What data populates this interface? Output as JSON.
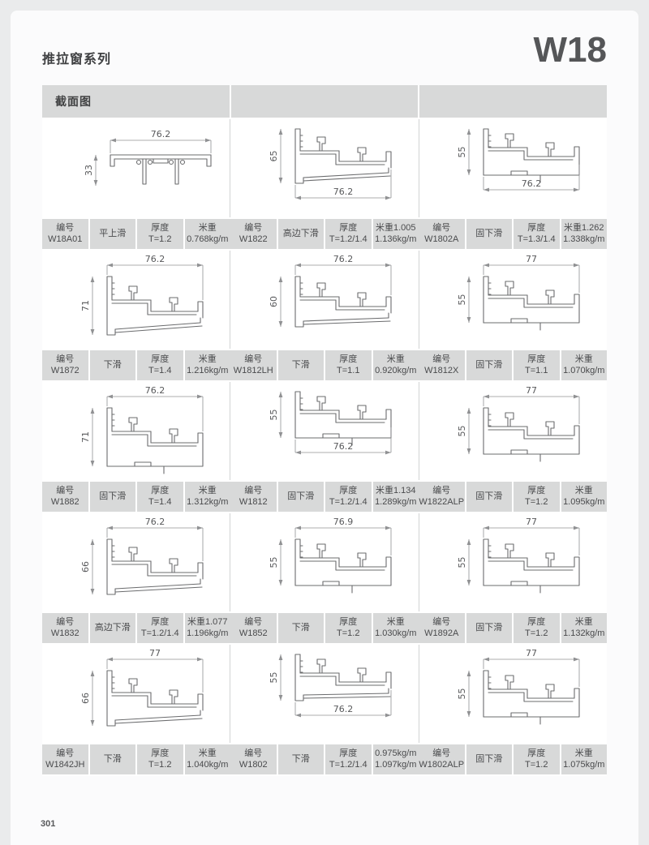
{
  "page": {
    "series_title": "推拉窗系列",
    "series_code": "W18",
    "page_number": "301"
  },
  "table": {
    "header": "截面图",
    "labels": {
      "code": "编号",
      "thickness": "厚度",
      "weight": "米重"
    },
    "rows": [
      [
        {
          "code": "W18A01",
          "type": "平上滑",
          "thickness": "T=1.2",
          "weight_line1": "米重",
          "weight_line2": "0.768kg/m",
          "drawing": {
            "width_dim": "76.2",
            "height_dim": "33",
            "width_dim_pos": "top",
            "profile_style": "toprail",
            "height_mm": 33
          }
        },
        {
          "code": "W1822",
          "type": "高边下滑",
          "thickness": "T=1.2/1.4",
          "weight_line1": "米重1.005",
          "weight_line2": "1.136kg/m",
          "drawing": {
            "width_dim": "76.2",
            "height_dim": "65",
            "width_dim_pos": "bottom",
            "profile_style": "slope",
            "height_mm": 65
          }
        },
        {
          "code": "W1802A",
          "type": "固下滑",
          "thickness": "T=1.3/1.4",
          "weight_line1": "米重1.262",
          "weight_line2": "1.338kg/m",
          "drawing": {
            "width_dim": "76.2",
            "height_dim": "55",
            "width_dim_pos": "bottom",
            "profile_style": "flat",
            "height_mm": 55
          }
        }
      ],
      [
        {
          "code": "W1872",
          "type": "下滑",
          "thickness": "T=1.4",
          "weight_line1": "米重",
          "weight_line2": "1.216kg/m",
          "drawing": {
            "width_dim": "76.2",
            "height_dim": "71",
            "width_dim_pos": "top",
            "profile_style": "slope",
            "height_mm": 71
          }
        },
        {
          "code": "W1812LH",
          "type": "下滑",
          "thickness": "T=1.1",
          "weight_line1": "米重",
          "weight_line2": "0.920kg/m",
          "drawing": {
            "width_dim": "76.2",
            "height_dim": "60",
            "width_dim_pos": "top",
            "profile_style": "slope",
            "height_mm": 60
          }
        },
        {
          "code": "W1812X",
          "type": "固下滑",
          "thickness": "T=1.1",
          "weight_line1": "米重",
          "weight_line2": "1.070kg/m",
          "drawing": {
            "width_dim": "77",
            "height_dim": "55",
            "width_dim_pos": "top",
            "profile_style": "flat",
            "height_mm": 55
          }
        }
      ],
      [
        {
          "code": "W1882",
          "type": "固下滑",
          "thickness": "T=1.4",
          "weight_line1": "米重",
          "weight_line2": "1.312kg/m",
          "drawing": {
            "width_dim": "76.2",
            "height_dim": "71",
            "width_dim_pos": "top",
            "profile_style": "flat",
            "height_mm": 71
          }
        },
        {
          "code": "W1812",
          "type": "固下滑",
          "thickness": "T=1.2/1.4",
          "weight_line1": "米重1.134",
          "weight_line2": "1.289kg/m",
          "drawing": {
            "width_dim": "76.2",
            "height_dim": "55",
            "width_dim_pos": "bottom",
            "profile_style": "flat",
            "height_mm": 55
          }
        },
        {
          "code": "W1822ALP",
          "type": "固下滑",
          "thickness": "T=1.2",
          "weight_line1": "米重",
          "weight_line2": "1.095kg/m",
          "drawing": {
            "width_dim": "77",
            "height_dim": "55",
            "width_dim_pos": "top",
            "profile_style": "flat",
            "height_mm": 55
          }
        }
      ],
      [
        {
          "code": "W1832",
          "type": "高边下滑",
          "thickness": "T=1.2/1.4",
          "weight_line1": "米重1.077",
          "weight_line2": "1.196kg/m",
          "drawing": {
            "width_dim": "76.2",
            "height_dim": "66",
            "width_dim_pos": "top",
            "profile_style": "slope",
            "height_mm": 66
          }
        },
        {
          "code": "W1852",
          "type": "下滑",
          "thickness": "T=1.2",
          "weight_line1": "米重",
          "weight_line2": "1.030kg/m",
          "drawing": {
            "width_dim": "76.9",
            "height_dim": "55",
            "width_dim_pos": "top",
            "profile_style": "flat",
            "height_mm": 55
          }
        },
        {
          "code": "W1892A",
          "type": "固下滑",
          "thickness": "T=1.2",
          "weight_line1": "米重",
          "weight_line2": "1.132kg/m",
          "drawing": {
            "width_dim": "77",
            "height_dim": "55",
            "width_dim_pos": "top",
            "profile_style": "flat",
            "height_mm": 55
          }
        }
      ],
      [
        {
          "code": "W1842JH",
          "type": "下滑",
          "thickness": "T=1.2",
          "weight_line1": "米重",
          "weight_line2": "1.040kg/m",
          "drawing": {
            "width_dim": "77",
            "height_dim": "66",
            "width_dim_pos": "top",
            "profile_style": "slope",
            "height_mm": 66
          }
        },
        {
          "code": "W1802",
          "type": "下滑",
          "thickness": "T=1.2/1.4",
          "weight_line1": "0.975kg/m",
          "weight_line2": "1.097kg/m",
          "drawing": {
            "width_dim": "76.2",
            "height_dim": "55",
            "width_dim_pos": "bottom",
            "profile_style": "slope",
            "height_mm": 55
          }
        },
        {
          "code": "W1802ALP",
          "type": "固下滑",
          "thickness": "T=1.2",
          "weight_line1": "米重",
          "weight_line2": "1.075kg/m",
          "drawing": {
            "width_dim": "77",
            "height_dim": "55",
            "width_dim_pos": "top",
            "profile_style": "flat",
            "height_mm": 55
          }
        }
      ]
    ]
  },
  "colors": {
    "strip_bg": "#d8d9d9",
    "page_bg": "#fbfbfc",
    "outer_bg": "#eaebec",
    "text": "#4a4b4d",
    "profile_line": "#6b6c6e",
    "dim_line": "#909193"
  }
}
